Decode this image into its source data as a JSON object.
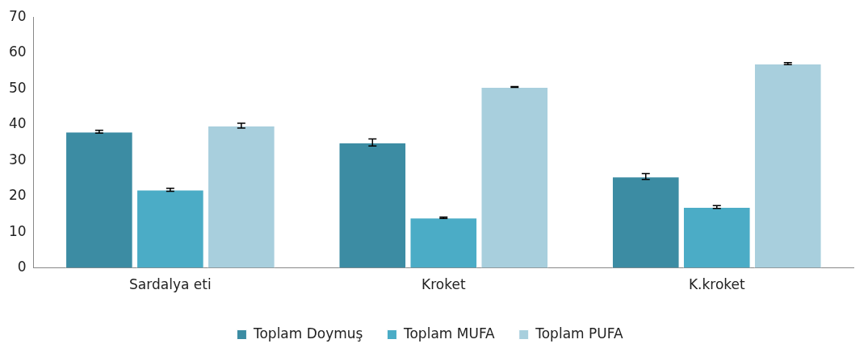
{
  "chart_data": {
    "type": "bar",
    "categories": [
      "Sardalya eti",
      "Kroket",
      "K.kroket"
    ],
    "series": [
      {
        "name": "Toplam Doymuş",
        "color": "#3c8ca3",
        "values": [
          38.0,
          35.0,
          25.5
        ],
        "errors": [
          0.4,
          1.0,
          0.8
        ]
      },
      {
        "name": "Toplam MUFA",
        "color": "#4bacc6",
        "values": [
          21.8,
          14.0,
          17.0
        ],
        "errors": [
          0.4,
          0.2,
          0.4
        ]
      },
      {
        "name": "Toplam PUFA",
        "color": "#a8cfdd",
        "values": [
          39.7,
          50.5,
          57.0
        ],
        "errors": [
          0.7,
          0.1,
          0.3
        ]
      }
    ],
    "ylim": [
      0,
      70
    ],
    "yticks": [
      0,
      10,
      20,
      30,
      40,
      50,
      60,
      70
    ],
    "grid": false,
    "legend": "bottom"
  }
}
